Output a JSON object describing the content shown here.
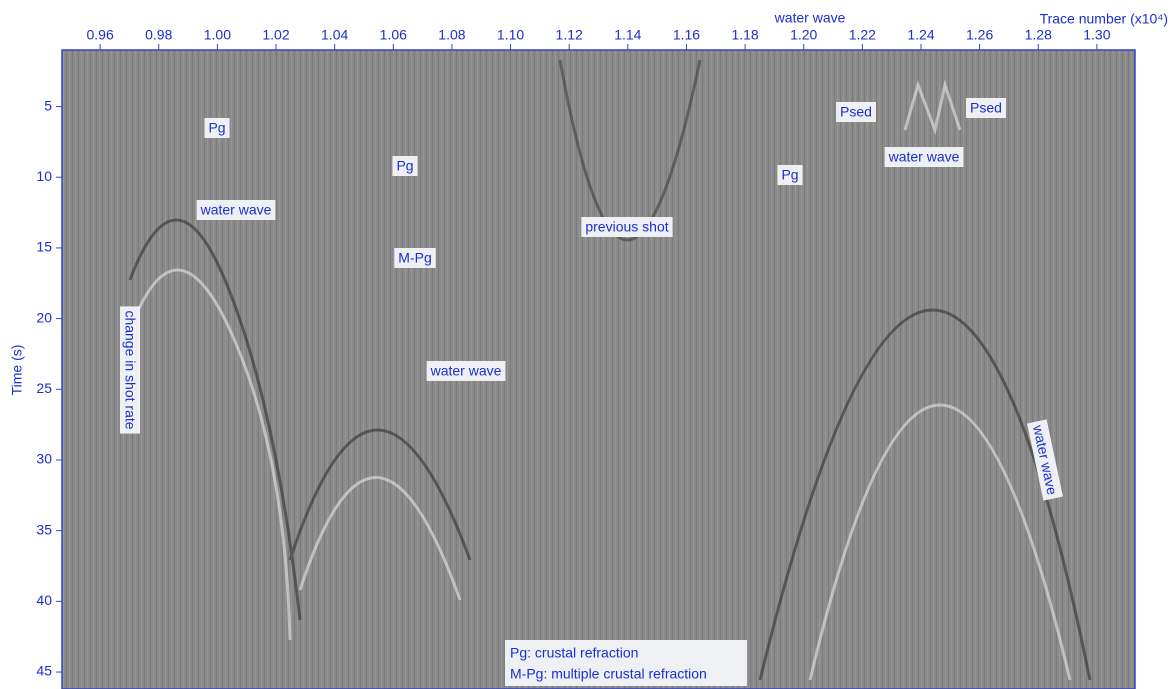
{
  "chart_data": {
    "type": "seismic",
    "x_label": "Trace number (x10⁴)",
    "y_label": "Time (s)",
    "xlim": [
      0.947,
      1.313
    ],
    "xticks": [
      0.96,
      0.98,
      {
        "value": 1,
        "label": "1.00"
      },
      1.02,
      1.04,
      1.06,
      1.08,
      {
        "value": 1.1,
        "label": "1.10"
      },
      1.12,
      1.14,
      1.16,
      1.18,
      {
        "value": 1.2,
        "label": "1.20"
      },
      1.22,
      1.24,
      1.26,
      1.28,
      {
        "value": 1.3,
        "label": "1.30"
      }
    ],
    "ylim": [
      1,
      46.2
    ],
    "yticks": [
      5,
      10,
      15,
      20,
      25,
      30,
      35,
      40,
      45
    ],
    "y_inverted": true,
    "axis_color": "#3344cc",
    "label_color": "#1a2fd0",
    "annotations": [
      "Pg",
      "Pg",
      "Pg",
      "water wave",
      "M-Pg",
      "previous shot",
      "water wave",
      "change in shot rate",
      "Psed",
      "Psed",
      "water wave",
      "water wave",
      "water wave"
    ],
    "legend": [
      "Pg: crustal refraction",
      "M-Pg: multiple crustal refraction"
    ]
  }
}
